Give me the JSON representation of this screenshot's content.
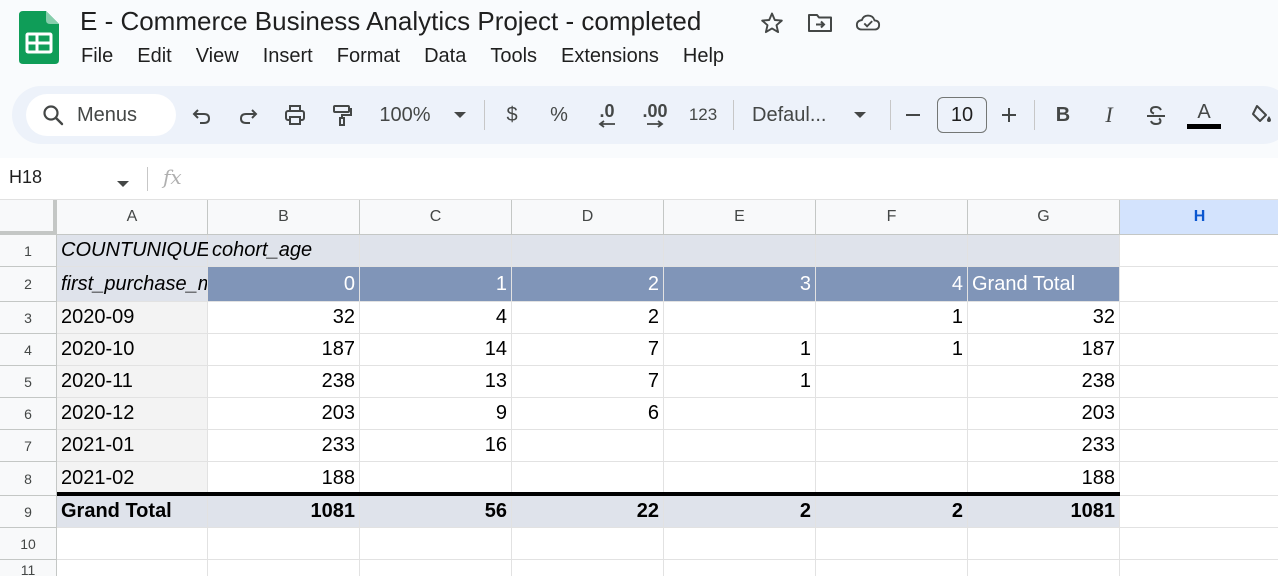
{
  "app": {
    "title": "E - Commerce Business Analytics Project - completed",
    "icons": [
      "star-icon",
      "move-to-folder-icon",
      "cloud-saved-icon"
    ],
    "brand_color": "#0f9d58"
  },
  "menu": {
    "file": "File",
    "edit": "Edit",
    "view": "View",
    "insert": "Insert",
    "format": "Format",
    "data": "Data",
    "tools": "Tools",
    "extensions": "Extensions",
    "help": "Help"
  },
  "toolbar": {
    "menus_label": "Menus",
    "zoom": "100%",
    "currency": "$",
    "percent": "%",
    "decrease_decimal": ".0",
    "increase_decimal": ".00",
    "number_format": "123",
    "font": "Defaul...",
    "font_size": "10",
    "bold": "B",
    "italic": "I",
    "text_color": "A"
  },
  "formula_bar": {
    "cell_ref": "H18",
    "fx": "fx",
    "value": ""
  },
  "grid": {
    "columns": [
      "A",
      "B",
      "C",
      "D",
      "E",
      "F",
      "G",
      "H"
    ],
    "selected_column": "H",
    "row_numbers": [
      "1",
      "2",
      "3",
      "4",
      "5",
      "6",
      "7",
      "8",
      "9",
      "10",
      "11"
    ],
    "pivot": {
      "title_cell": "COUNTUNIQUE",
      "column_field": "cohort_age",
      "row_field": "first_purchase_m",
      "column_headers": [
        "0",
        "1",
        "2",
        "3",
        "4"
      ],
      "grand_total_label": "Grand Total",
      "rows": [
        {
          "label": "2020-09",
          "values": [
            "32",
            "4",
            "2",
            "",
            "1"
          ],
          "total": "32"
        },
        {
          "label": "2020-10",
          "values": [
            "187",
            "14",
            "7",
            "1",
            "1"
          ],
          "total": "187"
        },
        {
          "label": "2020-11",
          "values": [
            "238",
            "13",
            "7",
            "1",
            ""
          ],
          "total": "238"
        },
        {
          "label": "2020-12",
          "values": [
            "203",
            "9",
            "6",
            "",
            ""
          ],
          "total": "203"
        },
        {
          "label": "2021-01",
          "values": [
            "233",
            "16",
            "",
            "",
            ""
          ],
          "total": "233"
        },
        {
          "label": "2021-02",
          "values": [
            "188",
            "",
            "",
            "",
            ""
          ],
          "total": "188"
        }
      ],
      "totals_row": {
        "label": "Grand Total",
        "values": [
          "1081",
          "56",
          "22",
          "2",
          "2"
        ],
        "total": "1081"
      }
    }
  },
  "colors": {
    "pivot_header_band": "#dfe3eb",
    "pivot_column_band": "#8095b8",
    "selected_column_header": "#d3e3fd"
  }
}
